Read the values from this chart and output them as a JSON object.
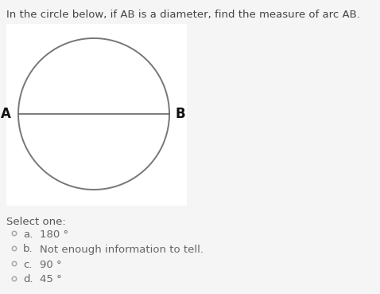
{
  "title": "In the circle below, if AB is a diameter, find the measure of arc AB.",
  "title_fontsize": 9.5,
  "title_color": "#444444",
  "bg_color": "#f5f5f5",
  "box_color": "#ffffff",
  "circle_color": "#777777",
  "circle_linewidth": 1.4,
  "diameter_color": "#666666",
  "diameter_linewidth": 1.2,
  "label_A": "A",
  "label_B": "B",
  "label_fontsize": 12,
  "label_color": "#111111",
  "select_text": "Select one:",
  "select_fontsize": 9.5,
  "select_color": "#555555",
  "options": [
    {
      "label": "a.",
      "text": "180 °"
    },
    {
      "label": "b.",
      "text": "Not enough information to tell."
    },
    {
      "label": "c.",
      "text": "90 °"
    },
    {
      "label": "d.",
      "text": "45 °"
    }
  ],
  "option_fontsize": 9.5,
  "option_color": "#666666",
  "radio_color": "#aaaaaa",
  "radio_size": 5.5
}
